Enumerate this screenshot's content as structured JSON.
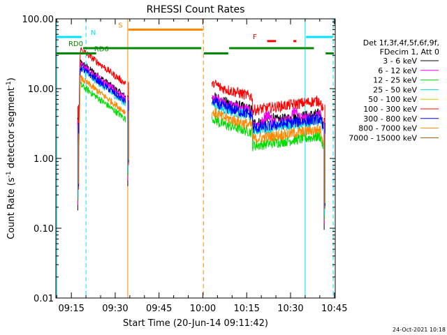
{
  "chart_data": {
    "type": "line",
    "title": "RHESSI Count Rates",
    "xlabel": "Start Time (20-Jun-14 09:11:42)",
    "ylabel": "Count Rate (s⁻¹ detector segment⁻¹)",
    "ylabel_main": "Count Rate (s",
    "ylabel_sup1": "-1",
    "ylabel_mid": " detector segment",
    "ylabel_sup2": "-1",
    "ylabel_end": ")",
    "yscale": "log",
    "ylim": [
      0.01,
      100
    ],
    "xlim_minutes": [
      9.7,
      105.3
    ],
    "x_ticks": [
      {
        "label": "09:15",
        "min": 15
      },
      {
        "label": "09:30",
        "min": 30
      },
      {
        "label": "09:45",
        "min": 45
      },
      {
        "label": "10:00",
        "min": 60
      },
      {
        "label": "10:15",
        "min": 75
      },
      {
        "label": "10:30",
        "min": 90
      },
      {
        "label": "10:45",
        "min": 105
      }
    ],
    "y_ticks": [
      {
        "label": "0.01",
        "v": 0.01
      },
      {
        "label": "0.10",
        "v": 0.1
      },
      {
        "label": "1.00",
        "v": 1
      },
      {
        "label": "10.00",
        "v": 10
      },
      {
        "label": "100.00",
        "v": 100
      }
    ],
    "legend": {
      "placement": "right",
      "header1": "Det 1f,3f,4f,5f,6f,9f,",
      "header2": "FDecim 1, Att 0"
    },
    "series": [
      {
        "name": "3 - 6 keV",
        "color": "#000000",
        "level": 1.0
      },
      {
        "name": "6 - 12 keV",
        "color": "#ff00ff",
        "level": 0.95
      },
      {
        "name": "12 - 25 keV",
        "color": "#00dd00",
        "level": 0.48
      },
      {
        "name": "25 - 50 keV",
        "color": "#00d8d8",
        "level": 0.8
      },
      {
        "name": "50 - 100 keV",
        "color": "#d8c800",
        "level": 0.0
      },
      {
        "name": "100 - 300 keV",
        "color": "#ff0000",
        "level": 1.55
      },
      {
        "name": "300 - 800 keV",
        "color": "#0000ff",
        "level": 0.85
      },
      {
        "name": "800 - 7000 keV",
        "color": "#ff8800",
        "level": 0.6
      },
      {
        "name": "7000 - 15000 keV",
        "color": "#8b5a00",
        "level": 0.0
      }
    ],
    "flags": [
      {
        "label": "N",
        "color": "#00e0ff",
        "start": 9.8,
        "end": 18.5,
        "y": 55,
        "label_min": 22.5
      },
      {
        "label": "N",
        "color": "#00e0ff",
        "start": 95.3,
        "end": 104.5,
        "y": 55,
        "label_min": null
      },
      {
        "label": "S",
        "color": "#ff8800",
        "start": 34.5,
        "end": 60.0,
        "y": 70,
        "label_min": 31.8
      },
      {
        "label": "F",
        "color": "#ff0000",
        "start": 82.0,
        "end": 85.0,
        "y": 48,
        "label_min": 77.8
      },
      {
        "label": "",
        "color": "#ff0000",
        "start": 91.0,
        "end": 92.0,
        "y": 48,
        "label_min": null
      },
      {
        "label": "RD0",
        "color": "#008800",
        "start": 19.0,
        "end": 59.5,
        "y": 38,
        "label_min": 16.5
      },
      {
        "label": "",
        "color": "#008800",
        "start": 69.0,
        "end": 98.0,
        "y": 38,
        "label_min": null
      },
      {
        "label": "RD6",
        "color": "#008800",
        "start": 9.9,
        "end": 23.5,
        "y": 32,
        "label_min": 25.3
      },
      {
        "label": "",
        "color": "#008800",
        "start": 60.3,
        "end": 68.7,
        "y": 32,
        "label_min": null
      },
      {
        "label": "",
        "color": "#008800",
        "start": 102.0,
        "end": 104.8,
        "y": 32,
        "label_min": null
      }
    ],
    "vlines": [
      {
        "min": 10.0,
        "color": "#00e0ff",
        "dashed": false
      },
      {
        "min": 95.0,
        "color": "#00e0ff",
        "dashed": false
      },
      {
        "min": 34.3,
        "color": "#ff8800",
        "dashed": false
      },
      {
        "min": 20.0,
        "color": "#00e0ff",
        "dashed": true
      },
      {
        "min": 104.6,
        "color": "#00e0ff",
        "dashed": true
      },
      {
        "min": 60.2,
        "color": "#ff8800",
        "dashed": true
      }
    ],
    "grid": false
  },
  "footer_date": "24-Oct-2021 10:18"
}
